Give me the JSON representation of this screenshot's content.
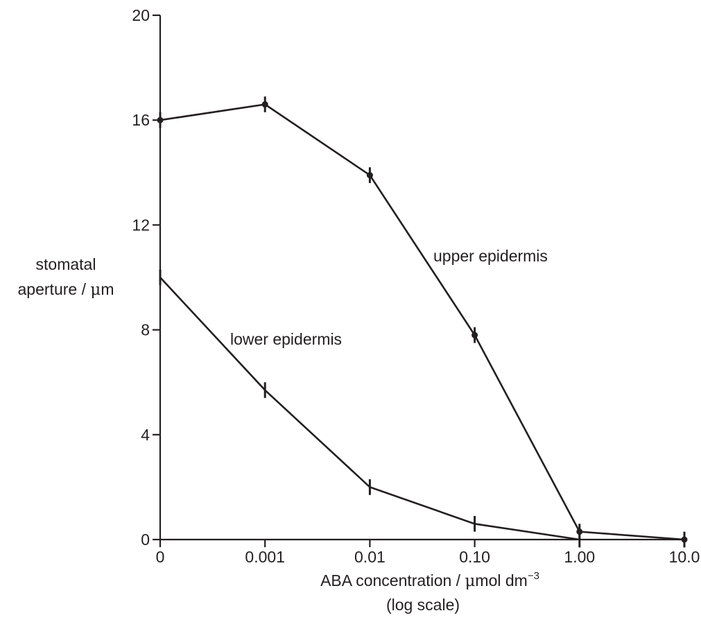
{
  "chart_data": {
    "type": "line",
    "categories": [
      "0",
      "0.001",
      "0.01",
      "0.10",
      "1.00",
      "10.0"
    ],
    "y_ticks": [
      "0",
      "4",
      "8",
      "12",
      "16",
      "20"
    ],
    "ylim": [
      0,
      20
    ],
    "x_scale": "log",
    "xlabel": {
      "prefix": "ABA concentration / ",
      "mu": "μ",
      "rest": "mol dm",
      "sup": "−3",
      "line2": "(log scale)"
    },
    "ylabel": {
      "line1": "stomatal",
      "line2_prefix": "aperture / ",
      "mu": "μ",
      "line2_suffix": "m"
    },
    "series": [
      {
        "name": "upper epidermis",
        "values": [
          16.0,
          16.6,
          13.9,
          7.8,
          0.3,
          0.0
        ],
        "error": [
          0.3,
          0.3,
          0.3,
          0.3,
          0.3,
          0.3
        ],
        "markers": true
      },
      {
        "name": "lower epidermis",
        "values": [
          10.0,
          5.7,
          2.0,
          0.6,
          0.0,
          null
        ],
        "error": [
          0.3,
          0.3,
          0.3,
          0.3,
          0.3,
          null
        ],
        "markers": false
      }
    ],
    "grid": false,
    "legend": "none"
  }
}
